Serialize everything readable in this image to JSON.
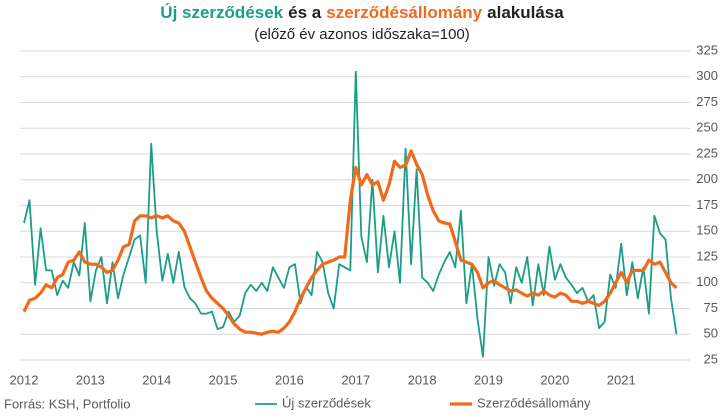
{
  "chart_data": {
    "type": "line",
    "title_parts": [
      {
        "text": "Új szerződések",
        "color": "#1a9e86"
      },
      {
        "text": "és a",
        "color": "#222222"
      },
      {
        "text": "szerződésállomány",
        "color": "#f06a1e"
      },
      {
        "text": "alakulása",
        "color": "#222222"
      }
    ],
    "subtitle": "(előző év azonos időszaka=100)",
    "source": "Forrás: KSH, Portfolio",
    "categories": [
      "2012",
      null,
      null,
      null,
      null,
      null,
      null,
      null,
      null,
      null,
      null,
      null,
      "2013",
      null,
      null,
      null,
      null,
      null,
      null,
      null,
      null,
      null,
      null,
      null,
      "2014",
      null,
      null,
      null,
      null,
      null,
      null,
      null,
      null,
      null,
      null,
      null,
      "2015",
      null,
      null,
      null,
      null,
      null,
      null,
      null,
      null,
      null,
      null,
      null,
      "2016",
      null,
      null,
      null,
      null,
      null,
      null,
      null,
      null,
      null,
      null,
      null,
      "2017",
      null,
      null,
      null,
      null,
      null,
      null,
      null,
      null,
      null,
      null,
      null,
      "2018",
      null,
      null,
      null,
      null,
      null,
      null,
      null,
      null,
      null,
      null,
      null,
      "2019",
      null,
      null,
      null,
      null,
      null,
      null,
      null,
      null,
      null,
      null,
      null,
      "2020",
      null,
      null,
      null,
      null,
      null,
      null,
      null,
      null,
      null,
      null,
      null,
      "2021",
      null,
      null,
      null,
      null,
      null,
      null,
      null,
      null,
      null,
      null
    ],
    "series": [
      {
        "name": "Új szerződések",
        "color": "#1a9e86",
        "width": 1.8,
        "values": [
          158,
          180,
          98,
          153,
          112,
          112,
          88,
          102,
          95,
          120,
          107,
          158,
          82,
          112,
          125,
          80,
          120,
          85,
          108,
          125,
          142,
          146,
          100,
          235,
          150,
          102,
          128,
          100,
          130,
          96,
          85,
          80,
          70,
          70,
          72,
          55,
          57,
          72,
          62,
          68,
          90,
          98,
          92,
          100,
          92,
          115,
          105,
          95,
          115,
          118,
          80,
          96,
          88,
          130,
          120,
          90,
          75,
          118,
          115,
          112,
          305,
          145,
          120,
          200,
          110,
          165,
          115,
          150,
          100,
          230,
          118,
          210,
          105,
          100,
          92,
          108,
          120,
          130,
          115,
          170,
          80,
          118,
          65,
          28,
          125,
          97,
          118,
          110,
          80,
          115,
          100,
          125,
          78,
          118,
          88,
          135,
          103,
          118,
          105,
          98,
          90,
          95,
          82,
          88,
          56,
          62,
          108,
          95,
          138,
          88,
          120,
          85,
          115,
          70,
          165,
          148,
          142,
          85,
          50
        ]
      },
      {
        "name": "Szerződésállomány",
        "color": "#f06a1e",
        "width": 3.2,
        "values": [
          72,
          83,
          85,
          90,
          98,
          95,
          105,
          108,
          120,
          122,
          130,
          120,
          118,
          118,
          115,
          110,
          112,
          122,
          135,
          137,
          160,
          165,
          165,
          163,
          165,
          163,
          165,
          160,
          158,
          150,
          135,
          120,
          105,
          92,
          85,
          80,
          75,
          68,
          60,
          55,
          52,
          52,
          51,
          50,
          52,
          53,
          52,
          56,
          62,
          72,
          85,
          95,
          105,
          112,
          118,
          120,
          122,
          125,
          125,
          180,
          212,
          195,
          205,
          195,
          198,
          180,
          195,
          218,
          212,
          214,
          228,
          215,
          205,
          185,
          170,
          160,
          158,
          157,
          140,
          122,
          120,
          118,
          110,
          95,
          100,
          102,
          98,
          95,
          92,
          93,
          90,
          87,
          90,
          88,
          92,
          88,
          86,
          90,
          88,
          82,
          82,
          80,
          82,
          80,
          78,
          82,
          90,
          100,
          110,
          100,
          112,
          112,
          112,
          122,
          118,
          120,
          110,
          100,
          95
        ]
      }
    ],
    "ylim": [
      25,
      325
    ],
    "yticks": [
      25,
      50,
      75,
      100,
      125,
      150,
      175,
      200,
      225,
      250,
      275,
      300,
      325
    ],
    "grid": true
  }
}
